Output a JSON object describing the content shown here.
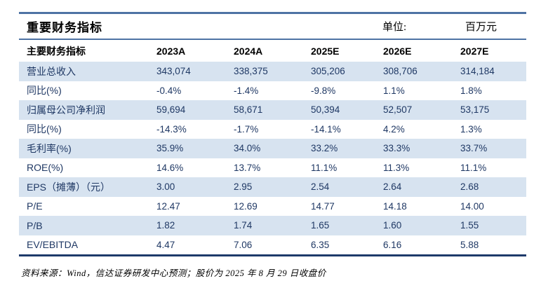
{
  "header": {
    "title": "重要财务指标",
    "unit_label": "单位:",
    "unit_value": "百万元"
  },
  "table": {
    "columns": [
      "主要财务指标",
      "2023A",
      "2024A",
      "2025E",
      "2026E",
      "2027E"
    ],
    "rows": [
      {
        "label": "营业总收入",
        "values": [
          "343,074",
          "338,375",
          "305,206",
          "308,706",
          "314,184"
        ]
      },
      {
        "label": "同比(%)",
        "values": [
          "-0.4%",
          "-1.4%",
          "-9.8%",
          "1.1%",
          "1.8%"
        ]
      },
      {
        "label": "归属母公司净利润",
        "values": [
          "59,694",
          "58,671",
          "50,394",
          "52,507",
          "53,175"
        ]
      },
      {
        "label": "同比(%)",
        "values": [
          "-14.3%",
          "-1.7%",
          "-14.1%",
          "4.2%",
          "1.3%"
        ]
      },
      {
        "label": "毛利率(%)",
        "values": [
          "35.9%",
          "34.0%",
          "33.2%",
          "33.3%",
          "33.7%"
        ]
      },
      {
        "label": "ROE(%)",
        "values": [
          "14.6%",
          "13.7%",
          "11.1%",
          "11.3%",
          "11.1%"
        ]
      },
      {
        "label": "EPS（摊薄）（元）",
        "values": [
          "3.00",
          "2.95",
          "2.54",
          "2.64",
          "2.68"
        ]
      },
      {
        "label": "P/E",
        "values": [
          "12.47",
          "12.69",
          "14.77",
          "14.18",
          "14.00"
        ]
      },
      {
        "label": "P/B",
        "values": [
          "1.82",
          "1.74",
          "1.65",
          "1.60",
          "1.55"
        ]
      },
      {
        "label": "EV/EBITDA",
        "values": [
          "4.47",
          "7.06",
          "6.35",
          "6.16",
          "5.88"
        ]
      }
    ]
  },
  "footer": {
    "source_note": "资料来源：Wind，信达证券研发中心预测；股价为 2025 年 8 月 29 日收盘价"
  },
  "colors": {
    "rule_blue": "#4e73a4",
    "rule_navy": "#1e3a6a",
    "row_highlight": "#d7e3f0",
    "value_text": "#1f3864"
  }
}
